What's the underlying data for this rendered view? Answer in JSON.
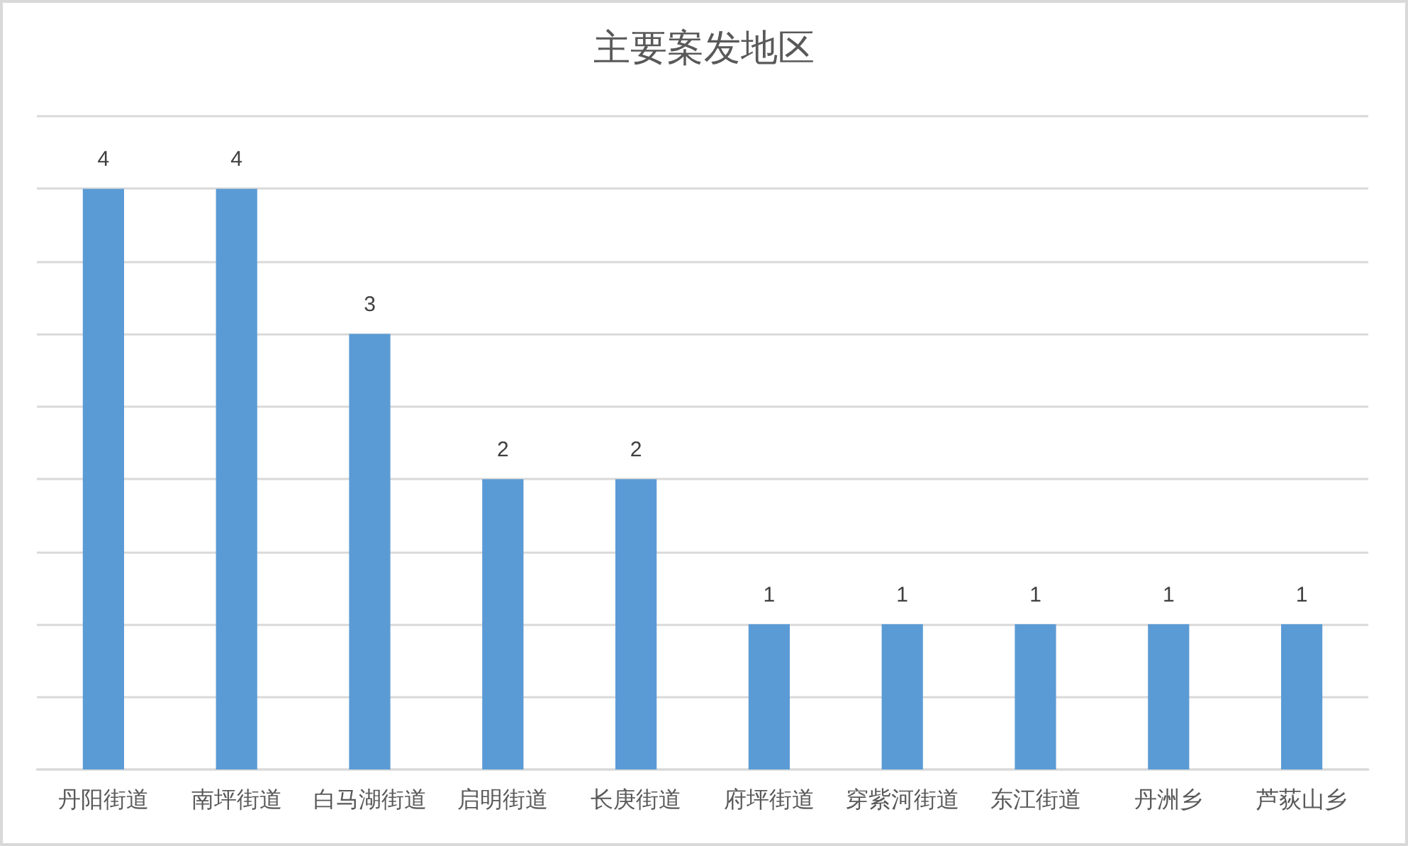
{
  "chart_data": {
    "type": "bar",
    "title": "主要案发地区",
    "categories": [
      "丹阳街道",
      "南坪街道",
      "白马湖街道",
      "启明街道",
      "长庚街道",
      "府坪街道",
      "穿紫河街道",
      "东江街道",
      "丹洲乡",
      "芦荻山乡"
    ],
    "values": [
      4,
      4,
      3,
      2,
      2,
      1,
      1,
      1,
      1,
      1
    ],
    "color": "#5b9bd5",
    "ylim": [
      0,
      4.5
    ],
    "yticks": [
      {
        "value": 0,
        "label": null
      },
      {
        "value": 0.5,
        "label": null
      },
      {
        "value": 1,
        "label": null
      },
      {
        "value": 1.5,
        "label": null
      },
      {
        "value": 2,
        "label": null
      },
      {
        "value": 2.5,
        "label": null
      },
      {
        "value": 3,
        "label": null
      },
      {
        "value": 3.5,
        "label": null
      },
      {
        "value": 4,
        "label": null
      },
      {
        "value": 4.5,
        "label": null
      }
    ],
    "grid": "y",
    "tick_labels": "x",
    "data_labels": true
  }
}
